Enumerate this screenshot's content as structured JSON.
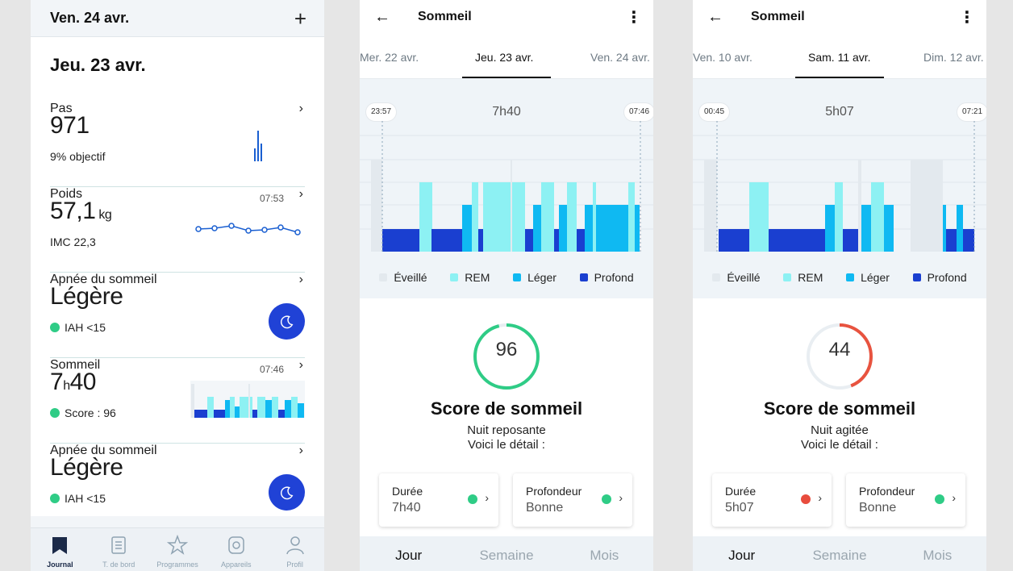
{
  "journal": {
    "header_date": "Ven. 24 avr.",
    "add_icon": "plus-icon",
    "day_title": "Jeu. 23 avr.",
    "steps": {
      "title": "Pas",
      "value": "971",
      "sub": "9% objectif"
    },
    "weight": {
      "title": "Poids",
      "value": "57,1",
      "unit": "kg",
      "sub": "IMC 22,3",
      "time": "07:53"
    },
    "apnea1": {
      "title": "Apnée du sommeil",
      "value": "Légère",
      "sub": "IAH <15",
      "icon": "moon-icon"
    },
    "sleep": {
      "title": "Sommeil",
      "value_h": "7",
      "h": "h",
      "value_m": "40",
      "sub": "Score : 96",
      "time": "07:46"
    },
    "apnea2": {
      "title": "Apnée du sommeil",
      "value": "Légère",
      "sub": "IAH <15",
      "icon": "moon-icon"
    },
    "nav": [
      {
        "label": "Journal",
        "icon": "journal-icon"
      },
      {
        "label": "T. de bord",
        "icon": "dashboard-icon"
      },
      {
        "label": "Programmes",
        "icon": "star-icon"
      },
      {
        "label": "Appareils",
        "icon": "watch-icon"
      },
      {
        "label": "Profil",
        "icon": "profile-icon"
      }
    ]
  },
  "sleep_views": [
    {
      "title": "Sommeil",
      "tabs": [
        "Mer. 22 avr.",
        "Jeu. 23 avr.",
        "Ven. 24 avr."
      ],
      "start": "23:57",
      "end": "07:46",
      "duration": "7h40",
      "legend": [
        "Éveillé",
        "REM",
        "Léger",
        "Profond"
      ],
      "score": 96,
      "score_title": "Score de sommeil",
      "score_sub1": "Nuit reposante",
      "score_sub2": "Voici le détail :",
      "card1": {
        "label": "Durée",
        "value": "7h40",
        "dot": "#2fcc86"
      },
      "card2": {
        "label": "Profondeur",
        "value": "Bonne",
        "dot": "#2fcc86"
      },
      "ring_color": "#2fcc86",
      "segments": [
        "Jour",
        "Semaine",
        "Mois"
      ]
    },
    {
      "title": "Sommeil",
      "tabs": [
        "Ven. 10 avr.",
        "Sam. 11 avr.",
        "Dim. 12 avr."
      ],
      "start": "00:45",
      "end": "07:21",
      "duration": "5h07",
      "legend": [
        "Éveillé",
        "REM",
        "Léger",
        "Profond"
      ],
      "score": 44,
      "score_title": "Score de sommeil",
      "score_sub1": "Nuit agitée",
      "score_sub2": "Voici le détail :",
      "card1": {
        "label": "Durée",
        "value": "5h07",
        "dot": "#e84c3d"
      },
      "card2": {
        "label": "Profondeur",
        "value": "Bonne",
        "dot": "#2fcc86"
      },
      "ring_color": "#e8533f",
      "segments": [
        "Jour",
        "Semaine",
        "Mois"
      ]
    }
  ],
  "colors": {
    "awake": "#e3e9ee",
    "rem": "#8df1f3",
    "light": "#0fb9f2",
    "deep": "#1a3fd0",
    "accent": "#2042d6"
  }
}
